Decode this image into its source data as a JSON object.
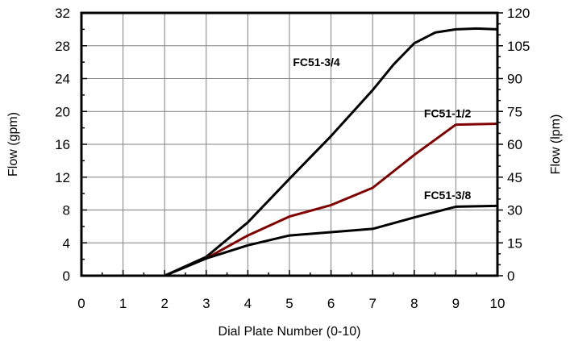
{
  "chart_data": {
    "type": "line",
    "xlabel": "Dial Plate Number (0-10)",
    "ylabel": "Flow (gpm)",
    "y2label": "Flow (lpm)",
    "xlim": [
      0,
      10
    ],
    "ylim": [
      0,
      32
    ],
    "y2lim": [
      0,
      120
    ],
    "grid": true,
    "x_ticks": [
      "0",
      "1",
      "2",
      "3",
      "4",
      "5",
      "6",
      "7",
      "8",
      "9",
      "10"
    ],
    "y_ticks": [
      "0",
      "4",
      "8",
      "12",
      "16",
      "20",
      "24",
      "28",
      "32"
    ],
    "y2_ticks": [
      "0",
      "15",
      "30",
      "45",
      "60",
      "75",
      "90",
      "105",
      "120"
    ],
    "series": [
      {
        "name": "FC51-3/4",
        "color": "#000000",
        "points": [
          [
            1,
            0
          ],
          [
            2,
            0
          ],
          [
            3,
            2.3
          ],
          [
            4,
            6.5
          ],
          [
            5,
            11.8
          ],
          [
            6,
            17
          ],
          [
            7,
            22.6
          ],
          [
            7.5,
            25.7
          ],
          [
            8,
            28.3
          ],
          [
            8.5,
            29.6
          ],
          [
            9,
            30
          ],
          [
            9.5,
            30.1
          ],
          [
            10,
            30
          ]
        ]
      },
      {
        "name": "FC51-1/2",
        "color": "#800000",
        "points": [
          [
            1,
            0
          ],
          [
            1.5,
            0
          ],
          [
            2,
            0
          ],
          [
            3,
            2.1
          ],
          [
            4,
            4.9
          ],
          [
            5,
            7.2
          ],
          [
            6,
            8.6
          ],
          [
            7,
            10.7
          ],
          [
            8,
            14.7
          ],
          [
            9,
            18.4
          ],
          [
            10,
            18.5
          ]
        ]
      },
      {
        "name": "FC51-3/8",
        "color": "#000000",
        "points": [
          [
            1,
            0
          ],
          [
            2,
            0
          ],
          [
            3,
            2.1
          ],
          [
            4,
            3.7
          ],
          [
            5,
            4.9
          ],
          [
            6,
            5.3
          ],
          [
            7,
            5.7
          ],
          [
            8,
            7.1
          ],
          [
            9,
            8.4
          ],
          [
            10,
            8.5
          ]
        ]
      }
    ]
  }
}
